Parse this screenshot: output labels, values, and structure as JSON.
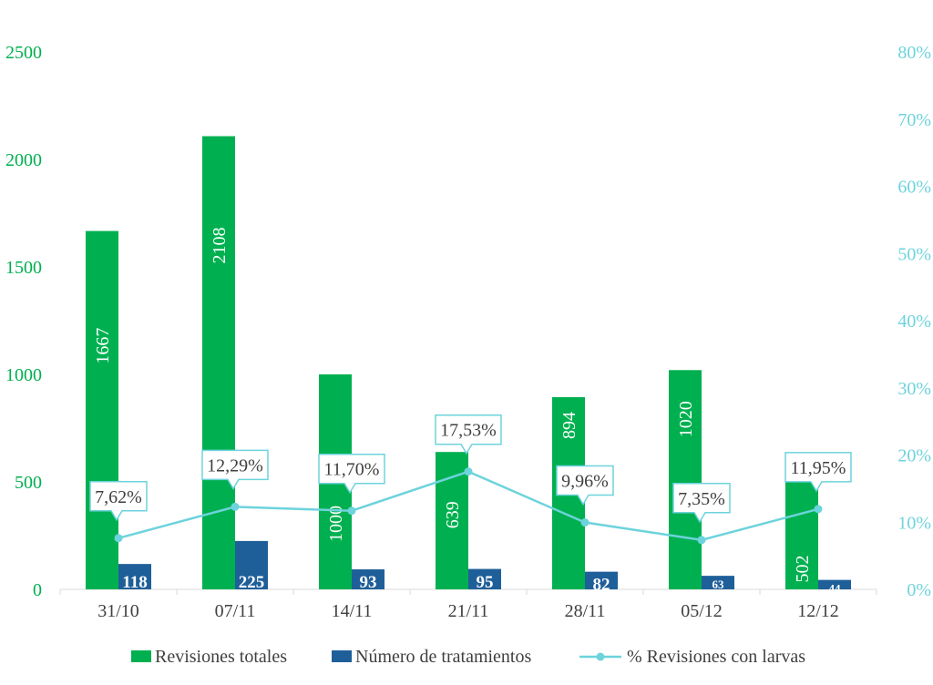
{
  "chart_data": {
    "type": "bar+line",
    "categories": [
      "31/10",
      "07/11",
      "14/11",
      "21/11",
      "28/11",
      "05/12",
      "12/12"
    ],
    "series": [
      {
        "name": "Revisiones totales",
        "type": "bar",
        "axis": "left",
        "color": "#00b050",
        "values": [
          1667,
          2108,
          1000,
          639,
          894,
          1020,
          502
        ],
        "labels": [
          "1667",
          "2108",
          "1000",
          "639",
          "894",
          "1020",
          "502"
        ]
      },
      {
        "name": "Número de tratamientos",
        "type": "bar",
        "axis": "left",
        "color": "#1f5f99",
        "values": [
          118,
          225,
          93,
          95,
          82,
          63,
          44
        ],
        "labels": [
          "118",
          "225",
          "93",
          "95",
          "82",
          "63",
          "44"
        ]
      },
      {
        "name": "% Revisiones con larvas",
        "type": "line",
        "axis": "right",
        "color": "#6dd3dc",
        "values": [
          7.62,
          12.29,
          11.7,
          17.53,
          9.96,
          7.35,
          11.95
        ],
        "labels": [
          "7,62%",
          "12,29%",
          "11,70%",
          "17,53%",
          "9,96%",
          "7,35%",
          "11,95%"
        ]
      }
    ],
    "y_left": {
      "range": [
        0,
        2500
      ],
      "ticks": [
        "0",
        "500",
        "1000",
        "1500",
        "2000",
        "2500"
      ],
      "color": "#00b050"
    },
    "y_right": {
      "range": [
        0,
        80
      ],
      "ticks": [
        "0%",
        "10%",
        "20%",
        "30%",
        "40%",
        "50%",
        "60%",
        "70%",
        "80%"
      ],
      "color": "#6dd3dc"
    },
    "legend": {
      "placement": "bottom",
      "entries": [
        "Revisiones totales",
        "Número de tratamientos",
        "% Revisiones con larvas"
      ]
    },
    "grid": false
  }
}
